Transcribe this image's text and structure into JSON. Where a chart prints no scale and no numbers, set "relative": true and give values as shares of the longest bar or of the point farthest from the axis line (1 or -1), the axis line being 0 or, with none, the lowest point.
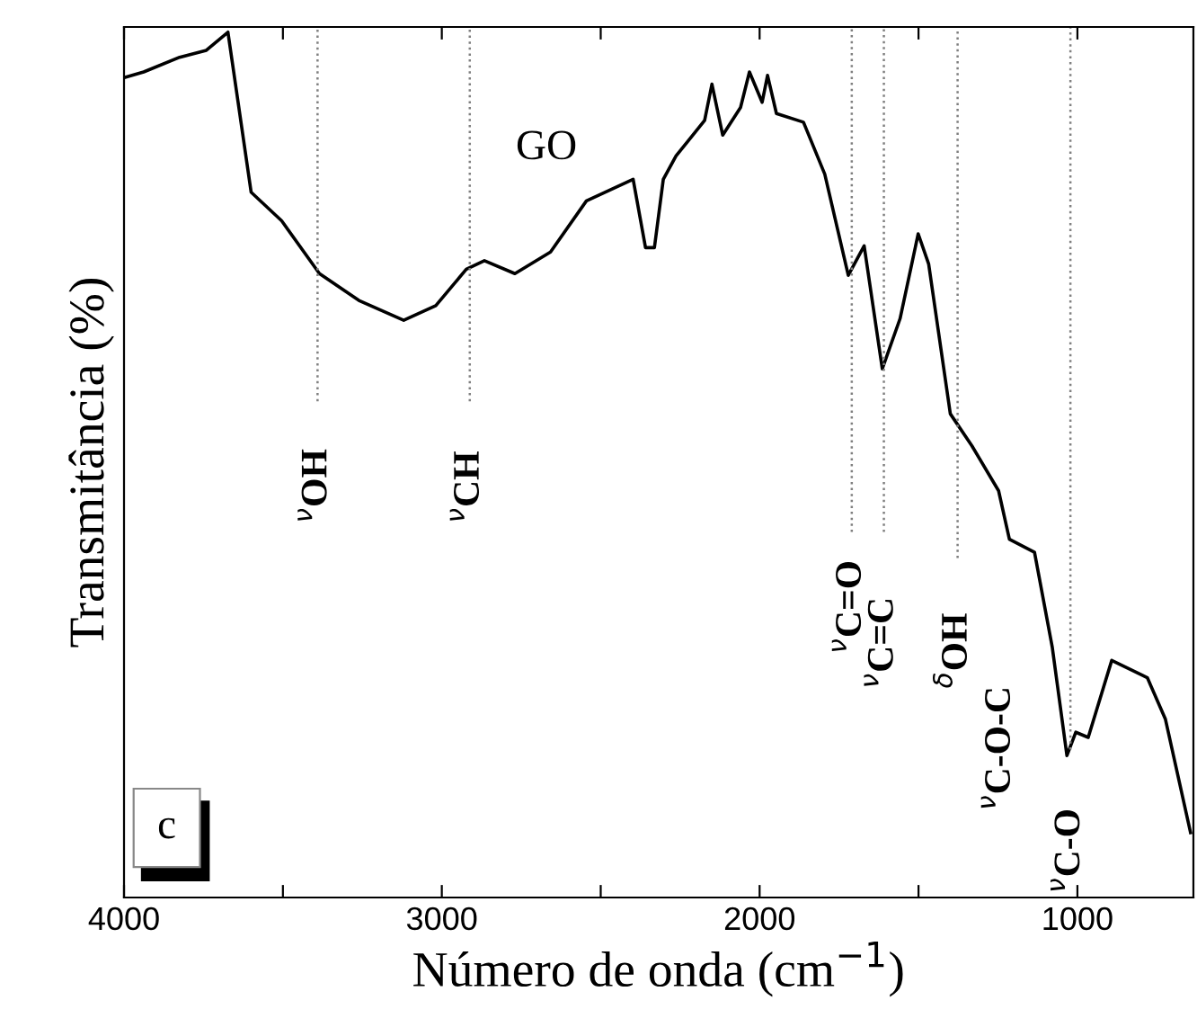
{
  "chart_data": {
    "type": "line",
    "relative": true,
    "xlabel": "Número de onda (cm$^{−1}$)",
    "ylabel": "Transmitância (%)",
    "xlim": [
      4000,
      635
    ],
    "xticks": [
      4000,
      {
        "value": 3500,
        "label": null
      },
      3000,
      {
        "value": 2500,
        "label": null
      },
      2000,
      {
        "value": 1500,
        "label": null
      },
      1000
    ],
    "x": [
      3994,
      3938,
      3825,
      3741,
      3673,
      3600,
      3504,
      3385,
      3261,
      3120,
      3019,
      2923,
      2866,
      2770,
      2658,
      2545,
      2398,
      2359,
      2331,
      2303,
      2263,
      2173,
      2150,
      2116,
      2060,
      2032,
      1992,
      1975,
      1947,
      1862,
      1795,
      1721,
      1671,
      1614,
      1558,
      1501,
      1468,
      1400,
      1332,
      1248,
      1214,
      1135,
      1079,
      1033,
      1005,
      966,
      892,
      780,
      723,
      644
    ],
    "series": [
      {
        "color": "#000000",
        "values": [
          0.948,
          0.954,
          0.971,
          0.979,
          1.0,
          0.815,
          0.782,
          0.721,
          0.69,
          0.667,
          0.684,
          0.726,
          0.736,
          0.721,
          0.746,
          0.805,
          0.83,
          0.751,
          0.751,
          0.83,
          0.857,
          0.898,
          0.94,
          0.881,
          0.913,
          0.954,
          0.919,
          0.95,
          0.906,
          0.896,
          0.836,
          0.719,
          0.753,
          0.611,
          0.669,
          0.767,
          0.732,
          0.559,
          0.522,
          0.47,
          0.414,
          0.399,
          0.289,
          0.164,
          0.191,
          0.185,
          0.274,
          0.254,
          0.206,
          0.075
        ]
      }
    ],
    "ref_lines": [
      {
        "axis": "x",
        "value": 3391,
        "label": "$^{ν}$OH",
        "color": "#808080",
        "line_style": "dotted"
      },
      {
        "axis": "x",
        "value": 2912,
        "label": "$^{ν}$CH",
        "color": "#808080",
        "line_style": "dotted"
      },
      {
        "axis": "x",
        "value": 1710,
        "label": "$^{ν}$C=O",
        "color": "#808080",
        "line_style": "dotted"
      },
      {
        "axis": "x",
        "value": 1609,
        "label": "$^{ν}$C=C",
        "color": "#808080",
        "line_style": "dotted"
      },
      {
        "axis": "x",
        "value": 1377,
        "label": "$^{δ}$OH",
        "color": "#808080",
        "line_style": "dotted"
      },
      {
        "axis": "x",
        "value": 1022,
        "label": "$^{ν}$C-O",
        "color": "#808080",
        "line_style": "dotted"
      }
    ],
    "annotations": [
      "GO",
      "$^{ν}$C-O-C",
      "c"
    ],
    "grid": false,
    "legend": false,
    "marker": "none",
    "line_style": "solid"
  }
}
